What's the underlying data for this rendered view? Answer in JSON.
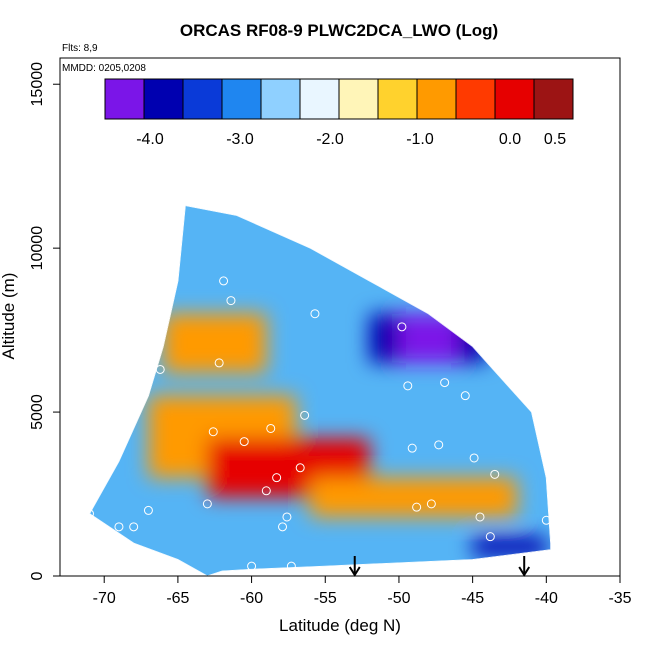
{
  "chart_data": {
    "type": "heatmap",
    "title": "ORCAS RF08-9 PLWC2DCA_LWO (Log)",
    "flights_note": "Flts: 8,9",
    "date_note": "MMDD: 0205,0208",
    "xlabel": "Latitude (deg N)",
    "ylabel": "Altitude (m)",
    "xlim": [
      -73,
      -35
    ],
    "ylim": [
      0,
      15800
    ],
    "x_ticks": [
      -70,
      -65,
      -60,
      -55,
      -50,
      -45,
      -40,
      -35
    ],
    "y_ticks": [
      0,
      5000,
      10000,
      15000
    ],
    "colorbar": {
      "range": [
        -4.5,
        0.7
      ],
      "tick_values": [
        -4.0,
        -3.0,
        -2.0,
        -1.0,
        0.0,
        0.5
      ],
      "tick_labels": [
        "-4.0",
        "-3.0",
        "-2.0",
        "-1.0",
        "0.0",
        "0.5"
      ],
      "colors": [
        "#7b15e8",
        "#0000b0",
        "#0a3ad8",
        "#1f86f0",
        "#8fd0ff",
        "#e9f6ff",
        "#fff5b8",
        "#ffd22d",
        "#ff9a00",
        "#ff3a00",
        "#e60000",
        "#9c1414"
      ]
    },
    "domain": {
      "top_edge": [
        [
          -64.5,
          11300
        ],
        [
          -61,
          11000
        ],
        [
          -56,
          10000
        ],
        [
          -52,
          9000
        ],
        [
          -48,
          8000
        ],
        [
          -45,
          7000
        ],
        [
          -43,
          6000
        ],
        [
          -41,
          5000
        ],
        [
          -40,
          3000
        ],
        [
          -39.7,
          1000
        ]
      ],
      "bottom_edge": [
        [
          -39.7,
          800
        ],
        [
          -45,
          500
        ],
        [
          -55,
          300
        ],
        [
          -60,
          200
        ],
        [
          -62,
          150
        ],
        [
          -63,
          0
        ]
      ],
      "left_edge": [
        [
          -63,
          0
        ],
        [
          -65,
          500
        ],
        [
          -68,
          1000
        ],
        [
          -71,
          1900
        ],
        [
          -69,
          3500
        ],
        [
          -67,
          5500
        ],
        [
          -66,
          7000
        ],
        [
          -65,
          9000
        ],
        [
          -64.5,
          11300
        ]
      ]
    },
    "field_bands": [
      {
        "lat_range": [
          -66,
          -59
        ],
        "alt_range": [
          6200,
          8000
        ],
        "log_value": -0.8
      },
      {
        "lat_range": [
          -67,
          -57
        ],
        "alt_range": [
          3000,
          5500
        ],
        "log_value": -0.9
      },
      {
        "lat_range": [
          -63,
          -52
        ],
        "alt_range": [
          2400,
          4200
        ],
        "log_value": 0.0
      },
      {
        "lat_range": [
          -56,
          -42
        ],
        "alt_range": [
          1800,
          3000
        ],
        "log_value": -0.7
      },
      {
        "lat_range": [
          -52,
          -44
        ],
        "alt_range": [
          6500,
          8000
        ],
        "log_value": -4.0
      },
      {
        "lat_range": [
          -50,
          -46
        ],
        "alt_range": [
          6500,
          8000
        ],
        "log_value": -4.3
      },
      {
        "lat_range": [
          -45,
          -40
        ],
        "alt_range": [
          600,
          1200
        ],
        "log_value": -3.8
      }
    ],
    "observation_points": [
      [
        -71,
        1900
      ],
      [
        -69,
        1500
      ],
      [
        -68,
        1500
      ],
      [
        -67,
        2000
      ],
      [
        -66.2,
        6300
      ],
      [
        -63,
        2200
      ],
      [
        -62.6,
        4400
      ],
      [
        -62.2,
        6500
      ],
      [
        -61.9,
        9000
      ],
      [
        -61.4,
        8400
      ],
      [
        -60.5,
        4100
      ],
      [
        -60,
        300
      ],
      [
        -59,
        2600
      ],
      [
        -58.7,
        4500
      ],
      [
        -58.3,
        3000
      ],
      [
        -57.9,
        1500
      ],
      [
        -57.6,
        1800
      ],
      [
        -57.3,
        300
      ],
      [
        -56.7,
        3300
      ],
      [
        -56.4,
        4900
      ],
      [
        -55.7,
        8000
      ],
      [
        -49.8,
        7600
      ],
      [
        -49.4,
        5800
      ],
      [
        -49.1,
        3900
      ],
      [
        -48.8,
        2100
      ],
      [
        -47.8,
        2200
      ],
      [
        -47.3,
        4000
      ],
      [
        -46.9,
        5900
      ],
      [
        -45.5,
        5500
      ],
      [
        -44.9,
        3600
      ],
      [
        -44.5,
        1800
      ],
      [
        -43.8,
        1200
      ],
      [
        -43.5,
        3100
      ],
      [
        -40,
        1700
      ]
    ],
    "flight_markers_lat": [
      -53,
      -41.5
    ],
    "grid": false,
    "legend_position": "top"
  }
}
